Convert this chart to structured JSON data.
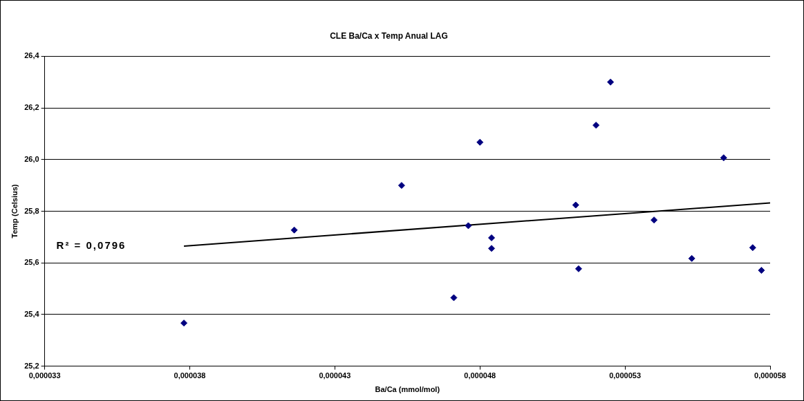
{
  "chart_data": {
    "type": "scatter",
    "title": "CLE Ba/Ca x Temp Anual LAG",
    "xlabel": "Ba/Ca (mmol/mol)",
    "ylabel": "Temp (Celsius)",
    "annotations": [
      "R² = 0,0796"
    ],
    "series": [
      {
        "color": "#000080",
        "marker": "diamond",
        "x": [
          3.78e-05,
          4.16e-05,
          4.53e-05,
          4.8e-05,
          5.25e-05,
          5.2e-05,
          5.64e-05,
          5.13e-05,
          4.76e-05,
          4.84e-05,
          4.84e-05,
          5.4e-05,
          4.71e-05,
          5.14e-05,
          5.53e-05,
          5.74e-05,
          5.77e-05
        ],
        "values": [
          25.367,
          25.727,
          25.9,
          26.067,
          26.3,
          26.133,
          26.007,
          25.824,
          25.744,
          25.697,
          25.656,
          25.766,
          25.465,
          25.577,
          25.617,
          25.659,
          25.571
        ]
      },
      {
        "type": "line",
        "color": "#000000",
        "marker": "none",
        "line_style": "solid",
        "x": [
          3.78e-05,
          5.8e-05
        ],
        "values": [
          25.665,
          25.832
        ]
      }
    ],
    "xlim": [
      3.3e-05,
      5.8e-05
    ],
    "xticks": [
      {
        "value": 3.3e-05,
        "label": "0,000033"
      },
      {
        "value": 3.8e-05,
        "label": "0,000038"
      },
      {
        "value": 4.3e-05,
        "label": "0,000043"
      },
      {
        "value": 4.8e-05,
        "label": "0,000048"
      },
      {
        "value": 5.3e-05,
        "label": "0,000053"
      },
      {
        "value": 5.8e-05,
        "label": "0,000058"
      }
    ],
    "ylim": [
      25.2,
      26.4
    ],
    "yticks": [
      {
        "value": 25.2,
        "label": "25,2"
      },
      {
        "value": 25.4,
        "label": "25,4"
      },
      {
        "value": 25.6,
        "label": "25,6"
      },
      {
        "value": 25.8,
        "label": "25,8"
      },
      {
        "value": 26.0,
        "label": "26,0"
      },
      {
        "value": 26.2,
        "label": "26,2"
      },
      {
        "value": 26.4,
        "label": "26,4"
      }
    ],
    "grid": "y",
    "legend": false
  }
}
